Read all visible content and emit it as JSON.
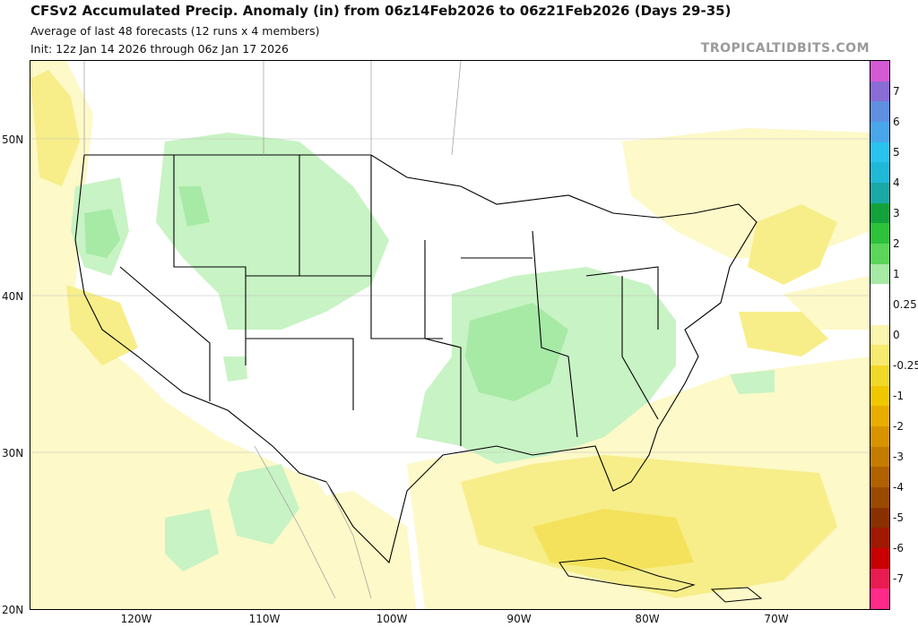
{
  "header": {
    "title": "CFSv2 Accumulated Precip. Anomaly (in) from 06z14Feb2026 to 06z21Feb2026 (Days 29-35)",
    "subtitle": "Average of last 48 forecasts (12 runs x 4 members)",
    "init": "Init: 12z Jan 14 2026 through 06z Jan 17 2026"
  },
  "brand": "TROPICALTIDBITS.COM",
  "axes": {
    "lat_labels": [
      "50N",
      "40N",
      "30N",
      "20N"
    ],
    "lon_labels": [
      "120W",
      "110W",
      "100W",
      "90W",
      "80W",
      "70W"
    ]
  },
  "colorbar": {
    "labels": [
      "7",
      "6",
      "5",
      "4",
      "3",
      "2",
      "1",
      "0.25",
      "0",
      "-0.25",
      "-1",
      "-2",
      "-3",
      "-4",
      "-5",
      "-6",
      "-7"
    ],
    "colors": [
      "#d45ad4",
      "#8a6cd6",
      "#5f8fe0",
      "#4aa6ea",
      "#28c4ee",
      "#1fb9d8",
      "#1aa9a6",
      "#12a23c",
      "#2cc23a",
      "#5cd65a",
      "#a6eaa6",
      "#ffffff",
      "#ffffff",
      "#fbf5b0",
      "#f6ea70",
      "#f2d828",
      "#f0c800",
      "#e8ae00",
      "#d89400",
      "#c47c00",
      "#b06200",
      "#9a4a00",
      "#8a3000",
      "#a01800",
      "#c80000",
      "#e81c50",
      "#ff2a8a"
    ],
    "legend_colors": {
      "positive_light": "#c8f3c4",
      "positive_mid": "#a6eaa6",
      "negative_light": "#fdf9c8",
      "negative_mid": "#f7ee8a"
    }
  }
}
